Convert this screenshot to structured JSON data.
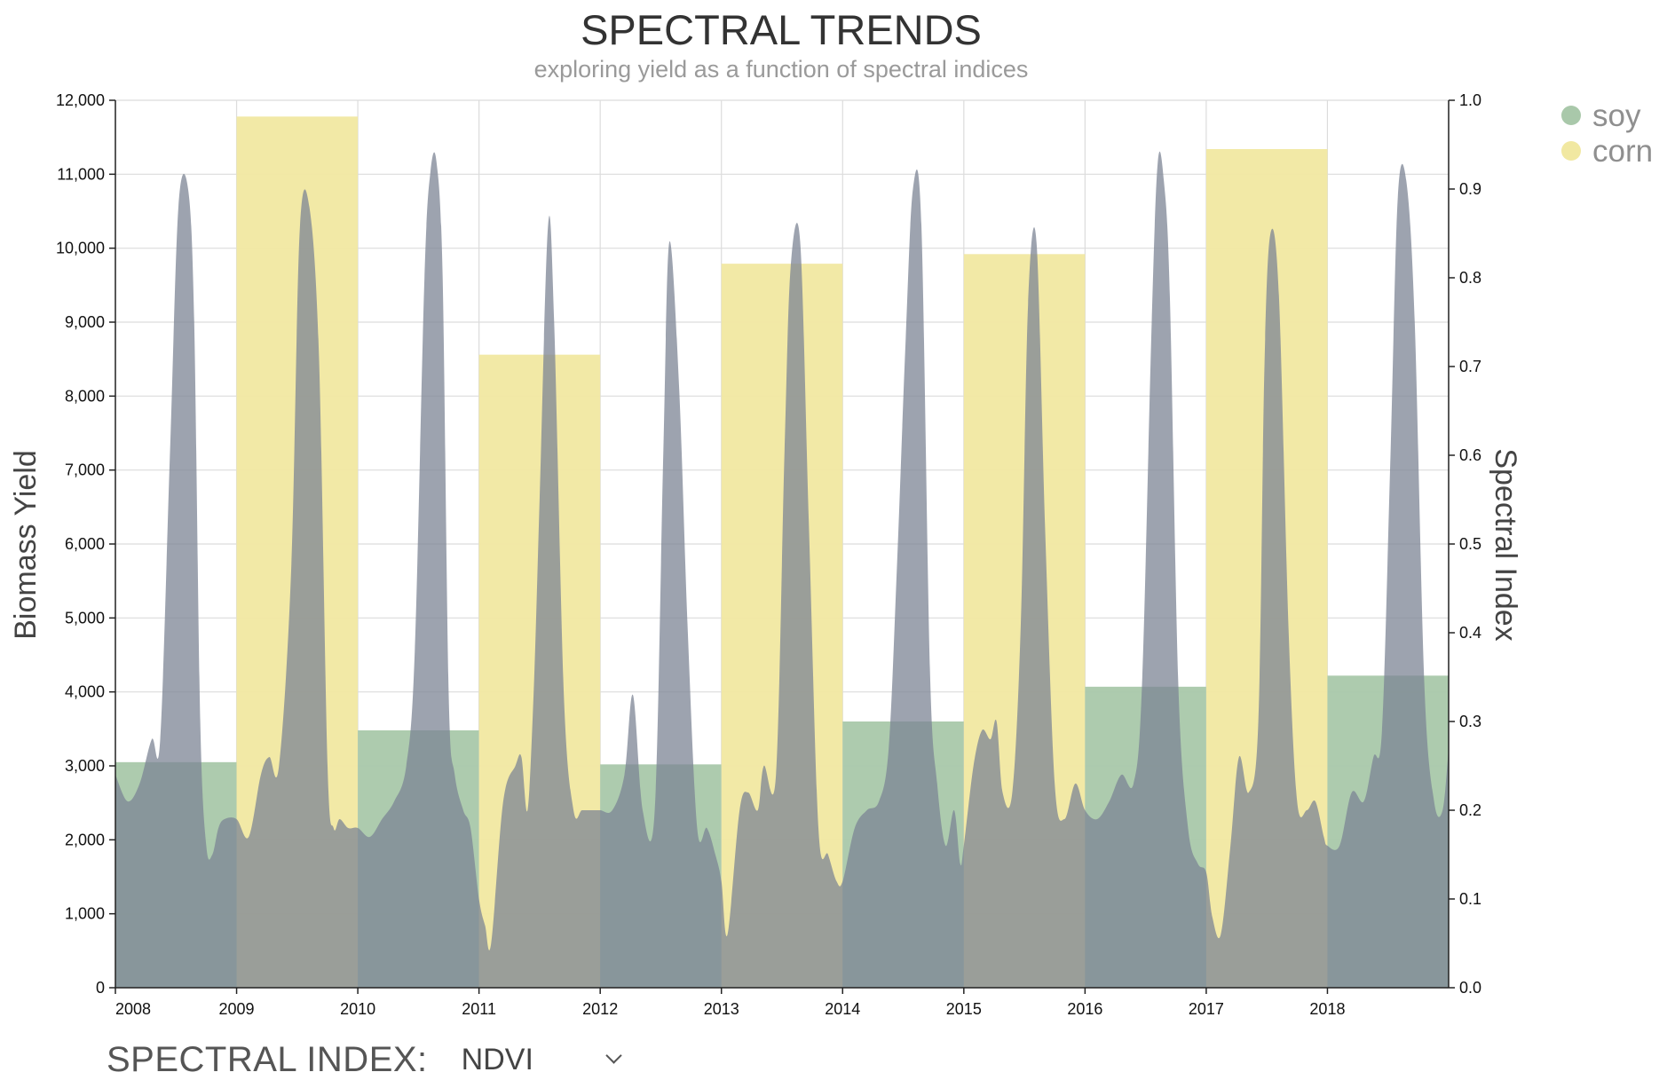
{
  "chart_data": {
    "type": "bar",
    "title": "SPECTRAL TRENDS",
    "subtitle": "exploring yield as a function of spectral indices",
    "ylabel": "Biomass Yield",
    "y2label": "Spectral Index",
    "ylim": [
      0,
      12000
    ],
    "y2lim": [
      0.0,
      1.0
    ],
    "yticks": [
      "0",
      "1,000",
      "2,000",
      "3,000",
      "4,000",
      "5,000",
      "6,000",
      "7,000",
      "8,000",
      "9,000",
      "10,000",
      "11,000",
      "12,000"
    ],
    "y2ticks": [
      "0.0",
      "0.1",
      "0.2",
      "0.3",
      "0.4",
      "0.5",
      "0.6",
      "0.7",
      "0.8",
      "0.9",
      "1.0"
    ],
    "categories": [
      "2008",
      "2009",
      "2010",
      "2011",
      "2012",
      "2013",
      "2014",
      "2015",
      "2016",
      "2017",
      "2018"
    ],
    "bars": [
      {
        "year": "2008",
        "crop": "soy",
        "yield": 3050
      },
      {
        "year": "2009",
        "crop": "corn",
        "yield": 11780
      },
      {
        "year": "2010",
        "crop": "soy",
        "yield": 3480
      },
      {
        "year": "2011",
        "crop": "corn",
        "yield": 8560
      },
      {
        "year": "2012",
        "crop": "soy",
        "yield": 3020
      },
      {
        "year": "2013",
        "crop": "corn",
        "yield": 9790
      },
      {
        "year": "2014",
        "crop": "soy",
        "yield": 3600
      },
      {
        "year": "2015",
        "crop": "corn",
        "yield": 9920
      },
      {
        "year": "2016",
        "crop": "soy",
        "yield": 4070
      },
      {
        "year": "2017",
        "crop": "corn",
        "yield": 11340
      },
      {
        "year": "2018",
        "crop": "soy",
        "yield": 4220
      }
    ],
    "index_series": {
      "x": [
        2008.0,
        2008.1,
        2008.2,
        2008.3,
        2008.37,
        2008.45,
        2008.52,
        2008.6,
        2008.65,
        2008.7,
        2008.75,
        2008.8,
        2008.85,
        2008.9,
        2009.0,
        2009.1,
        2009.2,
        2009.27,
        2009.35,
        2009.45,
        2009.52,
        2009.6,
        2009.68,
        2009.75,
        2009.8,
        2009.85,
        2009.92,
        2010.0,
        2010.1,
        2010.2,
        2010.3,
        2010.4,
        2010.47,
        2010.55,
        2010.6,
        2010.65,
        2010.7,
        2010.75,
        2010.8,
        2010.87,
        2010.93,
        2011.0,
        2011.05,
        2011.1,
        2011.2,
        2011.3,
        2011.35,
        2011.4,
        2011.45,
        2011.5,
        2011.57,
        2011.62,
        2011.7,
        2011.78,
        2011.85,
        2011.93,
        2012.0,
        2012.1,
        2012.2,
        2012.27,
        2012.35,
        2012.45,
        2012.52,
        2012.57,
        2012.65,
        2012.72,
        2012.8,
        2012.88,
        2012.95,
        2013.0,
        2013.05,
        2013.15,
        2013.22,
        2013.3,
        2013.35,
        2013.45,
        2013.52,
        2013.57,
        2013.65,
        2013.72,
        2013.8,
        2013.88,
        2013.95,
        2014.0,
        2014.1,
        2014.2,
        2014.3,
        2014.38,
        2014.45,
        2014.52,
        2014.58,
        2014.65,
        2014.72,
        2014.78,
        2014.85,
        2014.92,
        2014.97,
        2015.0,
        2015.08,
        2015.15,
        2015.22,
        2015.27,
        2015.32,
        2015.4,
        2015.47,
        2015.53,
        2015.6,
        2015.67,
        2015.75,
        2015.83,
        2015.92,
        2016.0,
        2016.1,
        2016.2,
        2016.3,
        2016.4,
        2016.47,
        2016.55,
        2016.6,
        2016.65,
        2016.7,
        2016.77,
        2016.85,
        2016.93,
        2017.0,
        2017.05,
        2017.12,
        2017.2,
        2017.27,
        2017.35,
        2017.43,
        2017.48,
        2017.53,
        2017.6,
        2017.68,
        2017.75,
        2017.83,
        2017.9,
        2017.97,
        2018.0,
        2018.1,
        2018.2,
        2018.3,
        2018.38,
        2018.45,
        2018.52,
        2018.58,
        2018.65,
        2018.72,
        2018.8,
        2018.88,
        2018.95,
        2019.0
      ],
      "values": [
        0.24,
        0.21,
        0.23,
        0.28,
        0.28,
        0.6,
        0.88,
        0.9,
        0.75,
        0.3,
        0.16,
        0.15,
        0.18,
        0.19,
        0.19,
        0.17,
        0.24,
        0.26,
        0.25,
        0.47,
        0.85,
        0.88,
        0.71,
        0.25,
        0.18,
        0.19,
        0.18,
        0.18,
        0.17,
        0.19,
        0.21,
        0.25,
        0.38,
        0.8,
        0.92,
        0.93,
        0.8,
        0.33,
        0.24,
        0.2,
        0.18,
        0.1,
        0.07,
        0.05,
        0.21,
        0.25,
        0.26,
        0.2,
        0.33,
        0.55,
        0.86,
        0.75,
        0.33,
        0.2,
        0.2,
        0.2,
        0.2,
        0.2,
        0.24,
        0.33,
        0.2,
        0.2,
        0.6,
        0.84,
        0.68,
        0.41,
        0.18,
        0.18,
        0.15,
        0.12,
        0.06,
        0.2,
        0.22,
        0.2,
        0.25,
        0.24,
        0.6,
        0.81,
        0.84,
        0.53,
        0.18,
        0.15,
        0.12,
        0.12,
        0.18,
        0.2,
        0.21,
        0.27,
        0.48,
        0.73,
        0.9,
        0.86,
        0.36,
        0.23,
        0.16,
        0.2,
        0.14,
        0.16,
        0.25,
        0.29,
        0.28,
        0.3,
        0.22,
        0.22,
        0.41,
        0.77,
        0.84,
        0.52,
        0.23,
        0.19,
        0.23,
        0.2,
        0.19,
        0.21,
        0.24,
        0.23,
        0.34,
        0.75,
        0.93,
        0.91,
        0.78,
        0.34,
        0.18,
        0.14,
        0.13,
        0.08,
        0.06,
        0.16,
        0.26,
        0.22,
        0.3,
        0.7,
        0.85,
        0.78,
        0.4,
        0.21,
        0.2,
        0.21,
        0.17,
        0.16,
        0.16,
        0.22,
        0.21,
        0.26,
        0.29,
        0.6,
        0.89,
        0.91,
        0.75,
        0.34,
        0.21,
        0.2,
        0.27
      ]
    },
    "legend": [
      {
        "label": "soy",
        "color": "#a9c8aa"
      },
      {
        "label": "corn",
        "color": "#f1e8a1"
      }
    ],
    "index_color": "#7c8494",
    "grid": true,
    "legend_position": "top-right"
  },
  "controls": {
    "spectral_index_label": "SPECTRAL INDEX:",
    "spectral_index_value": "NDVI"
  }
}
